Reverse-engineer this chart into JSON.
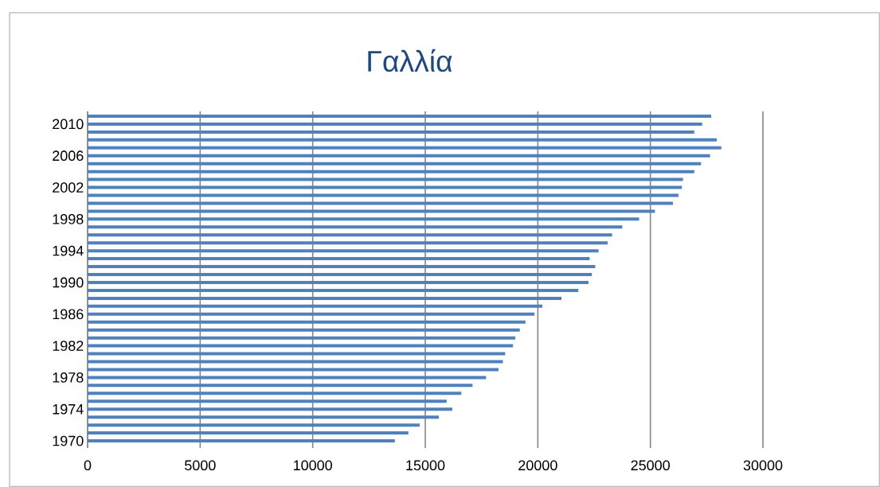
{
  "chart_data": {
    "type": "bar",
    "orientation": "horizontal",
    "title": "Γαλλία",
    "categories": [
      null,
      "2010",
      null,
      null,
      null,
      "2006",
      null,
      null,
      null,
      "2002",
      null,
      null,
      null,
      "1998",
      null,
      null,
      null,
      "1994",
      null,
      null,
      null,
      "1990",
      null,
      null,
      null,
      "1986",
      null,
      null,
      null,
      "1982",
      null,
      null,
      null,
      "1978",
      null,
      null,
      null,
      "1974",
      null,
      null,
      null,
      "1970"
    ],
    "values": [
      27700,
      27300,
      26950,
      27950,
      28150,
      27650,
      27250,
      26950,
      26450,
      26400,
      26250,
      26000,
      25200,
      24500,
      23750,
      23300,
      23100,
      22700,
      22300,
      22550,
      22400,
      22250,
      21800,
      21050,
      20200,
      19850,
      19450,
      19200,
      19000,
      18900,
      18550,
      18450,
      18250,
      17700,
      17100,
      16600,
      15950,
      16200,
      15600,
      14750,
      14250,
      13650
    ],
    "color": "#4f81bd",
    "xlim": [
      0,
      30000
    ],
    "xticks": [
      0,
      5000,
      10000,
      15000,
      20000,
      25000,
      30000
    ],
    "grid": "x"
  }
}
